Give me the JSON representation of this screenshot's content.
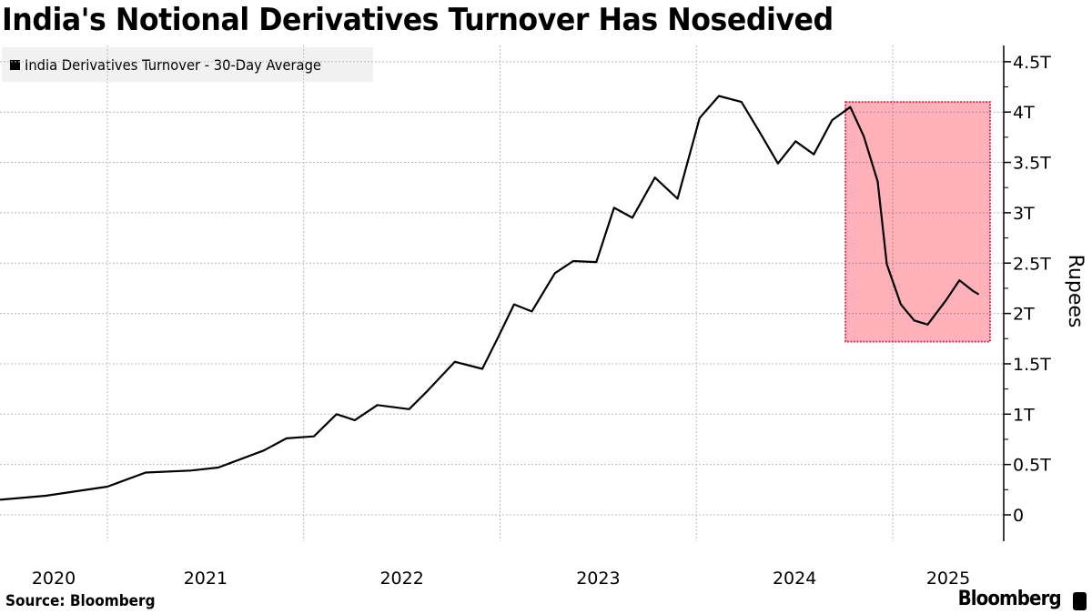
{
  "chart_data": {
    "type": "line",
    "title": "India's Notional Derivatives Turnover Has Nosedived",
    "ylabel": "Rupees",
    "xlabel": "",
    "ylim": [
      0,
      4.5
    ],
    "y_unit": "trillion rupees",
    "y_ticks": [
      0,
      0.5,
      1,
      1.5,
      2,
      2.5,
      3,
      3.5,
      4,
      4.5
    ],
    "y_tick_labels": [
      "0",
      "0.5T",
      "1T",
      "1.5T",
      "2T",
      "2.5T",
      "3T",
      "3.5T",
      "4T",
      "4.5T"
    ],
    "x_tick_labels": [
      "2020",
      "2021",
      "2022",
      "2023",
      "2024",
      "2025"
    ],
    "grid": true,
    "legend_placement": "top-left",
    "series": [
      {
        "name": "India Derivatives Turnover - 30-Day Average",
        "color": "#000000",
        "points": [
          [
            "2020-06-15",
            0.15
          ],
          [
            "2020-09-08",
            0.19
          ],
          [
            "2021-01-01",
            0.28
          ],
          [
            "2021-03-13",
            0.42
          ],
          [
            "2021-06-05",
            0.44
          ],
          [
            "2021-07-26",
            0.47
          ],
          [
            "2021-10-19",
            0.64
          ],
          [
            "2021-11-30",
            0.76
          ],
          [
            "2022-01-20",
            0.78
          ],
          [
            "2022-03-03",
            1.0
          ],
          [
            "2022-04-06",
            0.94
          ],
          [
            "2022-05-18",
            1.09
          ],
          [
            "2022-07-16",
            1.05
          ],
          [
            "2022-08-19",
            1.23
          ],
          [
            "2022-10-09",
            1.52
          ],
          [
            "2022-11-29",
            1.45
          ],
          [
            "2022-12-29",
            1.77
          ],
          [
            "2023-01-27",
            2.09
          ],
          [
            "2023-03-01",
            2.02
          ],
          [
            "2023-04-13",
            2.4
          ],
          [
            "2023-05-17",
            2.52
          ],
          [
            "2023-06-29",
            2.51
          ],
          [
            "2023-08-01",
            3.05
          ],
          [
            "2023-09-04",
            2.95
          ],
          [
            "2023-10-16",
            3.35
          ],
          [
            "2023-11-27",
            3.14
          ],
          [
            "2024-01-07",
            3.94
          ],
          [
            "2024-02-12",
            4.16
          ],
          [
            "2024-03-25",
            4.1
          ],
          [
            "2024-04-28",
            3.8
          ],
          [
            "2024-06-01",
            3.49
          ],
          [
            "2024-07-04",
            3.71
          ],
          [
            "2024-08-07",
            3.58
          ],
          [
            "2024-09-10",
            3.92
          ],
          [
            "2024-10-14",
            4.05
          ],
          [
            "2024-11-08",
            3.76
          ],
          [
            "2024-12-04",
            3.31
          ],
          [
            "2024-12-21",
            2.49
          ],
          [
            "2025-01-16",
            2.09
          ],
          [
            "2025-02-10",
            1.93
          ],
          [
            "2025-03-07",
            1.89
          ],
          [
            "2025-04-10",
            2.13
          ],
          [
            "2025-05-05",
            2.33
          ],
          [
            "2025-05-31",
            2.22
          ],
          [
            "2025-06-10",
            2.19
          ]
        ]
      }
    ],
    "highlight_box": {
      "x_start": "2024-10-05",
      "x_end": "2025-07-01",
      "y_min": 1.72,
      "y_max": 4.1,
      "color": "#ffa3ae",
      "border": "#e0325a"
    }
  },
  "footer": {
    "source": "Source: Bloomberg",
    "brand": "Bloomberg"
  }
}
